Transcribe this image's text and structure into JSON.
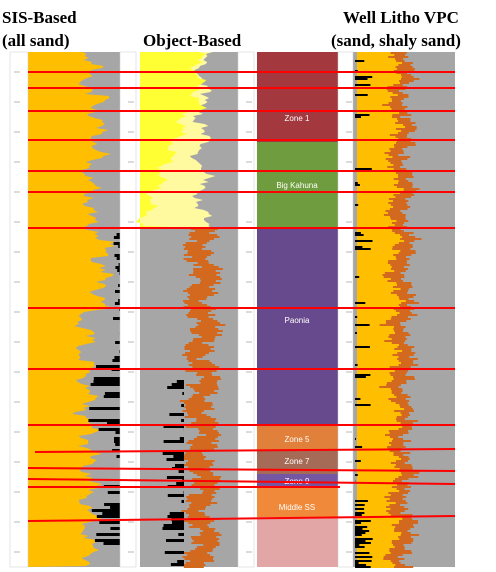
{
  "titles": {
    "sis_line1": "SIS-Based",
    "sis_line2": "(all sand)",
    "object": "Object-Based",
    "well_line1": "Well Litho VPC",
    "well_line2": "(sand, shaly sand)"
  },
  "zones": [
    {
      "label": "Zone 1",
      "color": "#a3383e"
    },
    {
      "label": "Big Kahuna",
      "color": "#6f9c3e"
    },
    {
      "label": "Paonia",
      "color": "#674a8d"
    },
    {
      "label": "Zone 5",
      "color": "#e0803a"
    },
    {
      "label": "Zone 7",
      "color": "#a56b56"
    },
    {
      "label": "Zone 9",
      "color": "#7556a3"
    },
    {
      "label": "Middle SS",
      "color": "#f08a3a"
    }
  ],
  "colors": {
    "sand": "#ffbe00",
    "shale": "#a6a6a6",
    "object_channel": "#d2691e",
    "light_sand": "#ffff33",
    "black": "#000000",
    "horizon": "#ff0000",
    "lower_zone": "#e2a6a6"
  }
}
